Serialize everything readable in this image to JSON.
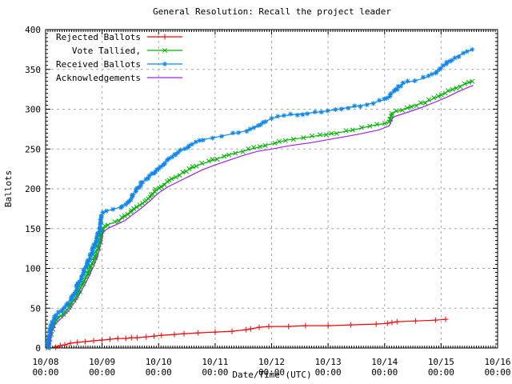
{
  "chart_data": {
    "type": "line",
    "title": "General Resolution: Recall the project leader",
    "xlabel": "Date/Time (UTC)",
    "ylabel": "Ballots",
    "xlim_days": [
      0,
      8
    ],
    "ylim": [
      0,
      400
    ],
    "grid": true,
    "legend_position": "top-left",
    "colors": {
      "background": "#ffffff",
      "border": "#000000",
      "grid": "#a8a8a8",
      "rejected": "#ff0000",
      "tallied": "#00b400",
      "received": "#0c86f0",
      "acknowledgements": "#a020f0"
    },
    "y_ticks": [
      0,
      50,
      100,
      150,
      200,
      250,
      300,
      350,
      400
    ],
    "x_tick_labels": [
      {
        "date": "10/08",
        "time": "00:00"
      },
      {
        "date": "10/09",
        "time": "00:00"
      },
      {
        "date": "10/10",
        "time": "00:00"
      },
      {
        "date": "10/11",
        "time": "00:00"
      },
      {
        "date": "10/12",
        "time": "00:00"
      },
      {
        "date": "10/13",
        "time": "00:00"
      },
      {
        "date": "10/14",
        "time": "00:00"
      },
      {
        "date": "10/15",
        "time": "00:00"
      },
      {
        "date": "10/16",
        "time": "00:00"
      }
    ],
    "series": [
      {
        "name": "Rejected Ballots",
        "color": "#ff0000",
        "marker": "plus",
        "marker_mode": "per-point",
        "points": [
          [
            0.18,
            1
          ],
          [
            0.26,
            3
          ],
          [
            0.34,
            4
          ],
          [
            0.44,
            6
          ],
          [
            0.56,
            7
          ],
          [
            0.7,
            8
          ],
          [
            0.85,
            9
          ],
          [
            1.0,
            10
          ],
          [
            1.14,
            11
          ],
          [
            1.28,
            12
          ],
          [
            1.42,
            12
          ],
          [
            1.52,
            13
          ],
          [
            1.62,
            13
          ],
          [
            1.78,
            14
          ],
          [
            1.92,
            15
          ],
          [
            2.05,
            16
          ],
          [
            2.28,
            17
          ],
          [
            2.45,
            18
          ],
          [
            2.7,
            19
          ],
          [
            3.0,
            20
          ],
          [
            3.3,
            21
          ],
          [
            3.55,
            23
          ],
          [
            3.63,
            24
          ],
          [
            3.78,
            26
          ],
          [
            3.95,
            27
          ],
          [
            4.3,
            27
          ],
          [
            4.6,
            28
          ],
          [
            5.0,
            28
          ],
          [
            5.4,
            29
          ],
          [
            5.85,
            30
          ],
          [
            6.05,
            31
          ],
          [
            6.13,
            32
          ],
          [
            6.22,
            33
          ],
          [
            6.55,
            34
          ],
          [
            6.9,
            35
          ],
          [
            7.08,
            36
          ]
        ]
      },
      {
        "name": "Vote Tallied,",
        "color": "#00b400",
        "marker": "cross",
        "marker_mode": "dense",
        "points": [
          [
            0.04,
            0
          ],
          [
            0.06,
            8
          ],
          [
            0.09,
            18
          ],
          [
            0.13,
            27
          ],
          [
            0.17,
            33
          ],
          [
            0.23,
            38
          ],
          [
            0.31,
            43
          ],
          [
            0.4,
            50
          ],
          [
            0.49,
            59
          ],
          [
            0.58,
            70
          ],
          [
            0.67,
            82
          ],
          [
            0.76,
            96
          ],
          [
            0.85,
            110
          ],
          [
            0.93,
            126
          ],
          [
            0.98,
            140
          ],
          [
            1.01,
            150
          ],
          [
            1.1,
            155
          ],
          [
            1.22,
            158
          ],
          [
            1.36,
            163
          ],
          [
            1.5,
            170
          ],
          [
            1.6,
            176
          ],
          [
            1.71,
            181
          ],
          [
            1.82,
            188
          ],
          [
            1.92,
            196
          ],
          [
            2.0,
            201
          ],
          [
            2.14,
            208
          ],
          [
            2.3,
            215
          ],
          [
            2.48,
            222
          ],
          [
            2.68,
            229
          ],
          [
            2.88,
            234
          ],
          [
            3.05,
            238
          ],
          [
            3.25,
            243
          ],
          [
            3.48,
            247
          ],
          [
            3.7,
            251
          ],
          [
            3.9,
            255
          ],
          [
            4.05,
            257
          ],
          [
            4.25,
            261
          ],
          [
            4.55,
            264
          ],
          [
            4.85,
            267
          ],
          [
            5.15,
            270
          ],
          [
            5.45,
            274
          ],
          [
            5.75,
            279
          ],
          [
            6.0,
            282
          ],
          [
            6.09,
            284
          ],
          [
            6.12,
            295
          ],
          [
            6.3,
            299
          ],
          [
            6.55,
            305
          ],
          [
            6.8,
            311
          ],
          [
            7.0,
            318
          ],
          [
            7.2,
            325
          ],
          [
            7.4,
            331
          ],
          [
            7.55,
            335
          ]
        ]
      },
      {
        "name": "Received Ballots",
        "color": "#0c86f0",
        "marker": "star",
        "marker_mode": "dense",
        "points": [
          [
            0.03,
            0
          ],
          [
            0.05,
            6
          ],
          [
            0.07,
            16
          ],
          [
            0.09,
            26
          ],
          [
            0.12,
            33
          ],
          [
            0.15,
            38
          ],
          [
            0.2,
            42
          ],
          [
            0.28,
            47
          ],
          [
            0.36,
            53
          ],
          [
            0.44,
            60
          ],
          [
            0.52,
            71
          ],
          [
            0.6,
            84
          ],
          [
            0.68,
            97
          ],
          [
            0.76,
            111
          ],
          [
            0.84,
            125
          ],
          [
            0.92,
            141
          ],
          [
            0.97,
            154
          ],
          [
            1.0,
            167
          ],
          [
            1.06,
            172
          ],
          [
            1.18,
            174
          ],
          [
            1.32,
            177
          ],
          [
            1.45,
            183
          ],
          [
            1.52,
            189
          ],
          [
            1.6,
            198
          ],
          [
            1.7,
            207
          ],
          [
            1.8,
            214
          ],
          [
            1.9,
            220
          ],
          [
            2.0,
            226
          ],
          [
            2.1,
            233
          ],
          [
            2.22,
            240
          ],
          [
            2.35,
            246
          ],
          [
            2.5,
            252
          ],
          [
            2.65,
            258
          ],
          [
            2.8,
            262
          ],
          [
            2.95,
            264
          ],
          [
            3.1,
            266
          ],
          [
            3.3,
            269
          ],
          [
            3.55,
            273
          ],
          [
            3.75,
            279
          ],
          [
            3.9,
            285
          ],
          [
            4.0,
            288
          ],
          [
            4.12,
            291
          ],
          [
            4.35,
            293
          ],
          [
            4.65,
            295
          ],
          [
            5.0,
            298
          ],
          [
            5.35,
            302
          ],
          [
            5.7,
            306
          ],
          [
            6.0,
            312
          ],
          [
            6.08,
            316
          ],
          [
            6.18,
            324
          ],
          [
            6.28,
            330
          ],
          [
            6.4,
            334
          ],
          [
            6.55,
            336
          ],
          [
            6.7,
            339
          ],
          [
            6.85,
            344
          ],
          [
            7.0,
            352
          ],
          [
            7.15,
            360
          ],
          [
            7.3,
            367
          ],
          [
            7.45,
            372
          ],
          [
            7.55,
            375
          ]
        ]
      },
      {
        "name": "Acknowledgements",
        "color": "#a020f0",
        "marker": "none",
        "marker_mode": "none",
        "points": [
          [
            0.05,
            0
          ],
          [
            0.08,
            10
          ],
          [
            0.12,
            22
          ],
          [
            0.17,
            30
          ],
          [
            0.24,
            35
          ],
          [
            0.33,
            41
          ],
          [
            0.42,
            48
          ],
          [
            0.52,
            58
          ],
          [
            0.62,
            70
          ],
          [
            0.72,
            83
          ],
          [
            0.82,
            98
          ],
          [
            0.92,
            115
          ],
          [
            0.98,
            132
          ],
          [
            1.02,
            146
          ],
          [
            1.12,
            151
          ],
          [
            1.25,
            155
          ],
          [
            1.4,
            160
          ],
          [
            1.55,
            168
          ],
          [
            1.7,
            176
          ],
          [
            1.85,
            185
          ],
          [
            2.0,
            195
          ],
          [
            2.18,
            203
          ],
          [
            2.38,
            210
          ],
          [
            2.58,
            217
          ],
          [
            2.78,
            224
          ],
          [
            3.0,
            230
          ],
          [
            3.25,
            236
          ],
          [
            3.5,
            242
          ],
          [
            3.75,
            247
          ],
          [
            4.0,
            250
          ],
          [
            4.3,
            254
          ],
          [
            4.7,
            258
          ],
          [
            5.1,
            263
          ],
          [
            5.5,
            268
          ],
          [
            5.9,
            274
          ],
          [
            6.08,
            279
          ],
          [
            6.15,
            290
          ],
          [
            6.4,
            296
          ],
          [
            6.65,
            302
          ],
          [
            6.9,
            309
          ],
          [
            7.1,
            315
          ],
          [
            7.3,
            322
          ],
          [
            7.5,
            328
          ],
          [
            7.57,
            330
          ]
        ]
      }
    ]
  }
}
